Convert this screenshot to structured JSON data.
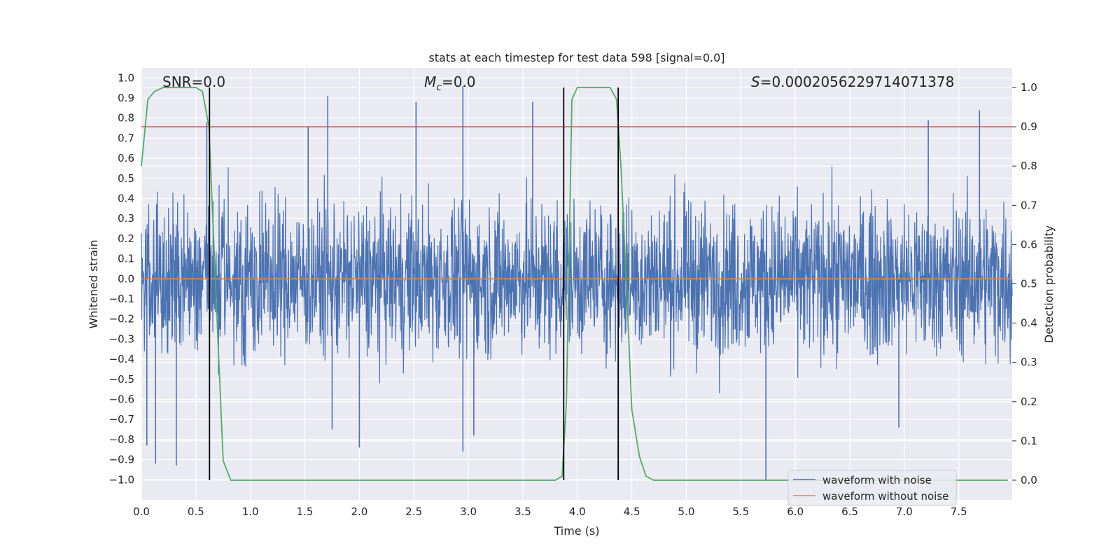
{
  "chart_data": {
    "type": "line",
    "title": "stats at each timestep for test data 598 [signal=0.0]",
    "xlabel": "Time (s)",
    "ylabel_left": "Whitened strain",
    "ylabel_right": "Detection probability",
    "xlim": [
      0.0,
      7.99
    ],
    "ylim_left": [
      -1.1,
      1.05
    ],
    "ylim_right": [
      -0.05,
      1.05
    ],
    "x_ticks": [
      "0.0",
      "0.5",
      "1.0",
      "1.5",
      "2.0",
      "2.5",
      "3.0",
      "3.5",
      "4.0",
      "4.5",
      "5.0",
      "5.5",
      "6.0",
      "6.5",
      "7.0",
      "7.5"
    ],
    "y_ticks_left": [
      "1.0",
      "0.9",
      "0.8",
      "0.7",
      "0.6",
      "0.5",
      "0.4",
      "0.3",
      "0.2",
      "0.1",
      "0.0",
      "-0.1",
      "-0.2",
      "-0.3",
      "-0.4",
      "-0.5",
      "-0.6",
      "-0.7",
      "-0.8",
      "-0.9",
      "-1.0"
    ],
    "y_ticks_right": [
      "1.0",
      "0.9",
      "0.8",
      "0.7",
      "0.6",
      "0.5",
      "0.4",
      "0.3",
      "0.2",
      "0.1",
      "0.0"
    ],
    "grid": true,
    "legend_position": "lower-right",
    "annotations": {
      "snr": "SNR=0.0",
      "mc": "=0.0",
      "mc_symbol": "M",
      "mc_sub": "c",
      "s": "=0.0002056229714071378",
      "s_symbol": "S"
    },
    "series": [
      {
        "name": "waveform with noise",
        "axis": "left",
        "color": "#4c72b0",
        "kind": "noise",
        "typical_amplitude": 0.45,
        "spikes": [
          {
            "x": 0.05,
            "y": -0.83
          },
          {
            "x": 0.13,
            "y": -0.92
          },
          {
            "x": 0.32,
            "y": -0.93
          },
          {
            "x": 1.71,
            "y": 0.91
          },
          {
            "x": 2.52,
            "y": 0.88
          },
          {
            "x": 2.95,
            "y": 0.96
          },
          {
            "x": 2.95,
            "y": -0.86
          },
          {
            "x": 3.59,
            "y": 0.88
          },
          {
            "x": 2.0,
            "y": -0.84
          },
          {
            "x": 5.73,
            "y": -1.0
          },
          {
            "x": 7.22,
            "y": 0.79
          },
          {
            "x": 7.69,
            "y": 0.84
          },
          {
            "x": 0.6,
            "y": 0.78
          },
          {
            "x": 1.53,
            "y": 0.76
          },
          {
            "x": 1.75,
            "y": -0.75
          },
          {
            "x": 6.95,
            "y": -0.74
          },
          {
            "x": 3.05,
            "y": -0.78
          }
        ]
      },
      {
        "name": "waveform without noise",
        "axis": "left",
        "color": "#dd8452",
        "x": [
          0.0,
          7.99
        ],
        "y": [
          0.0,
          0.0
        ]
      },
      {
        "name": "detection probability",
        "axis": "right",
        "color": "#55a868",
        "x": [
          0.0,
          0.06,
          0.12,
          0.2,
          0.3,
          0.4,
          0.5,
          0.56,
          0.62,
          0.68,
          0.75,
          0.82,
          0.9,
          1.0,
          2.0,
          3.0,
          3.8,
          3.86,
          3.9,
          3.95,
          4.0,
          4.1,
          4.2,
          4.3,
          4.36,
          4.4,
          4.45,
          4.5,
          4.57,
          4.63,
          4.7,
          5.0,
          6.0,
          7.0,
          7.95
        ],
        "y": [
          0.8,
          0.97,
          0.99,
          1.0,
          1.0,
          1.0,
          1.0,
          0.99,
          0.9,
          0.5,
          0.05,
          0.0,
          0.0,
          0.0,
          0.0,
          0.0,
          0.0,
          0.01,
          0.2,
          0.97,
          1.0,
          1.0,
          1.0,
          1.0,
          0.97,
          0.8,
          0.5,
          0.18,
          0.06,
          0.01,
          0.0,
          0.0,
          0.0,
          0.0,
          0.0
        ]
      }
    ],
    "threshold": {
      "axis": "right",
      "y": 0.9,
      "color": "#c44e52"
    },
    "vertical_lines": {
      "x": [
        0.625,
        3.875,
        4.375
      ],
      "color": "#000000"
    }
  }
}
